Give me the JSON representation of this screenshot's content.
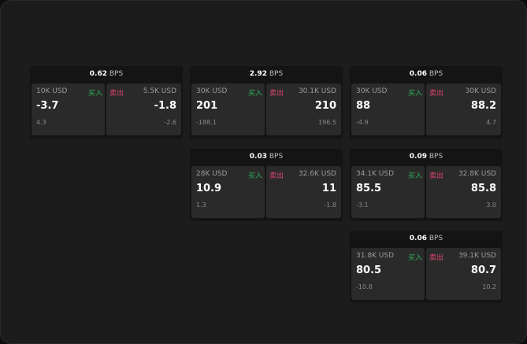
{
  "buy_label": "买入",
  "sell_label": "卖出",
  "unit": "BPS",
  "colors": {
    "buy": "#2fb35a",
    "sell": "#e0456f"
  },
  "widgets": [
    {
      "spread": "0.62",
      "bid": {
        "size": "10K USD",
        "price": "-3.7",
        "delta": "4.3"
      },
      "ask": {
        "size": "5.5K USD",
        "price": "-1.8",
        "delta": "-2.6"
      }
    },
    {
      "spread": "2.92",
      "bid": {
        "size": "30K USD",
        "price": "201",
        "delta": "-188.1"
      },
      "ask": {
        "size": "30.1K USD",
        "price": "210",
        "delta": "196.5"
      }
    },
    {
      "spread": "0.06",
      "bid": {
        "size": "30K USD",
        "price": "88",
        "delta": "-4.9"
      },
      "ask": {
        "size": "30K USD",
        "price": "88.2",
        "delta": "4.7"
      }
    },
    {
      "spread": "0.03",
      "bid": {
        "size": "28K USD",
        "price": "10.9",
        "delta": "1.3"
      },
      "ask": {
        "size": "32.6K USD",
        "price": "11",
        "delta": "-1.8"
      }
    },
    {
      "spread": "0.09",
      "bid": {
        "size": "34.1K USD",
        "price": "85.5",
        "delta": "-3.1"
      },
      "ask": {
        "size": "32.8K USD",
        "price": "85.8",
        "delta": "3.0"
      }
    },
    {
      "spread": "0.06",
      "bid": {
        "size": "31.8K USD",
        "price": "80.5",
        "delta": "-10.8"
      },
      "ask": {
        "size": "39.1K USD",
        "price": "80.7",
        "delta": "10.2"
      }
    }
  ]
}
